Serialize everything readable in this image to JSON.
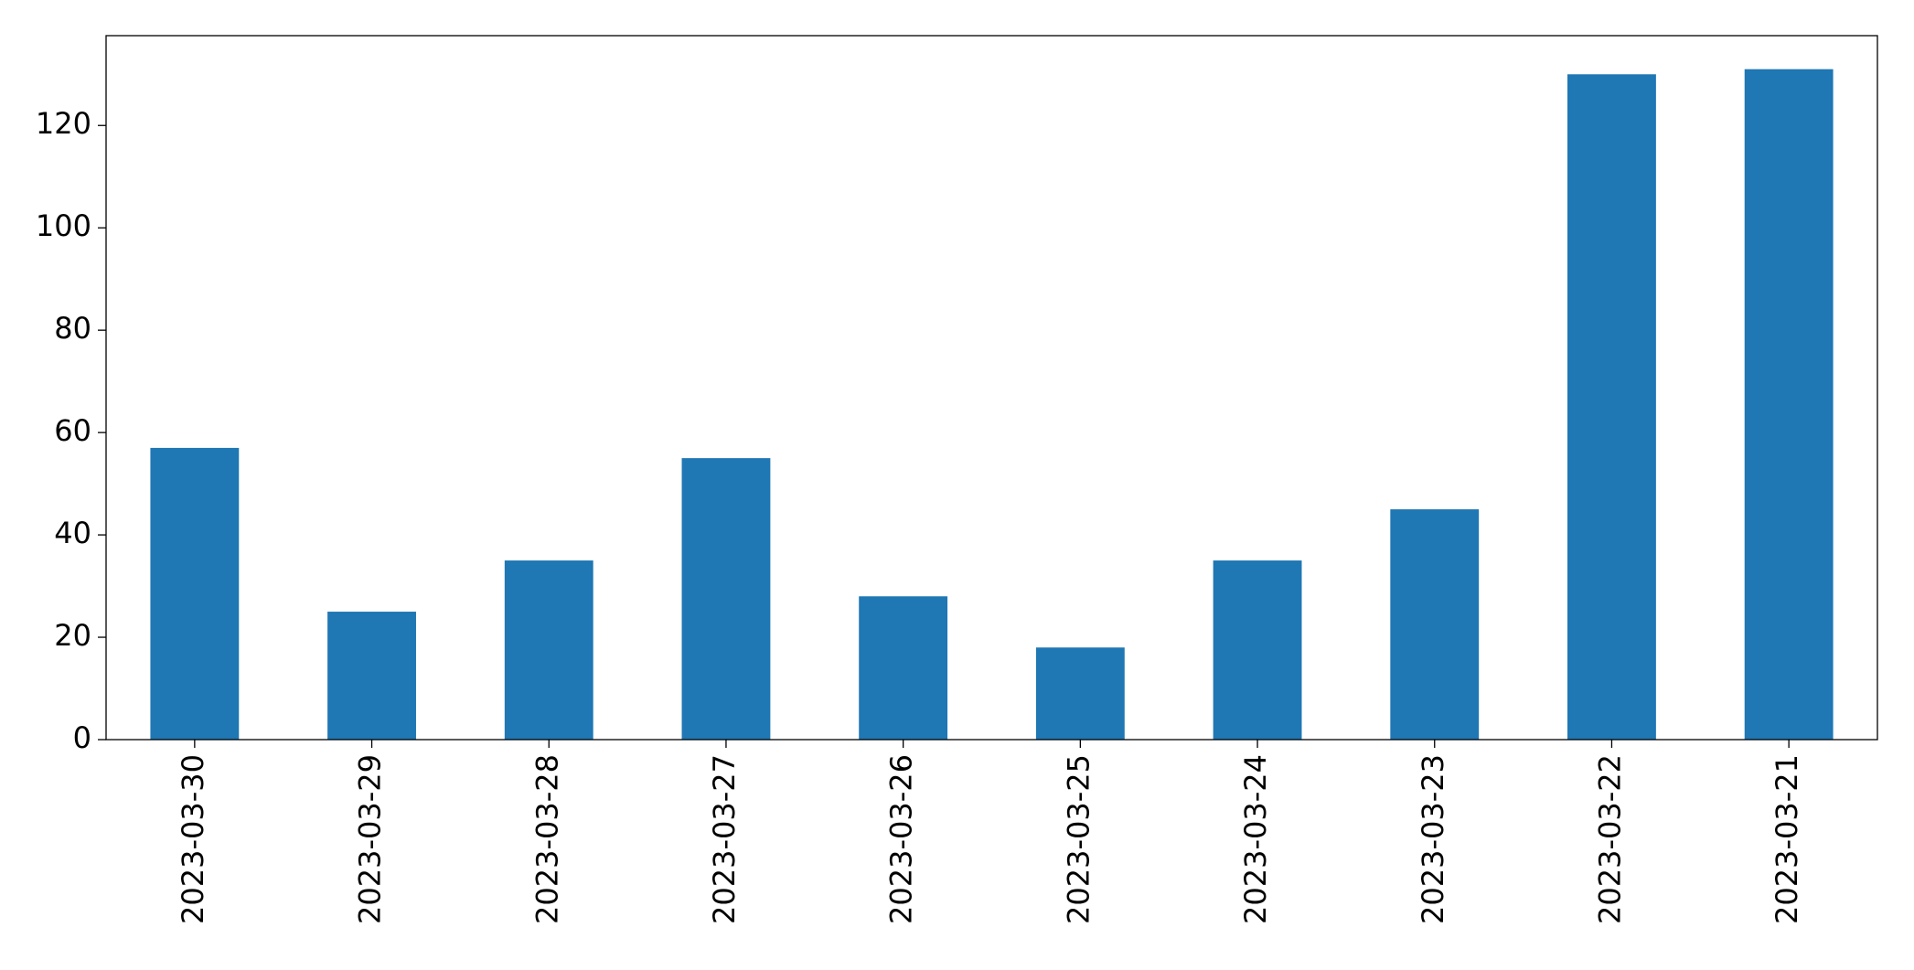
{
  "chart_data": {
    "type": "bar",
    "categories": [
      "2023-03-30",
      "2023-03-29",
      "2023-03-28",
      "2023-03-27",
      "2023-03-26",
      "2023-03-25",
      "2023-03-24",
      "2023-03-23",
      "2023-03-22",
      "2023-03-21"
    ],
    "values": [
      57,
      25,
      35,
      55,
      28,
      18,
      35,
      45,
      130,
      131
    ],
    "color": "#1f77b4",
    "ylim": [
      0,
      137.55
    ],
    "yticks": [
      0,
      20,
      40,
      60,
      80,
      100,
      120
    ],
    "grid": false
  }
}
